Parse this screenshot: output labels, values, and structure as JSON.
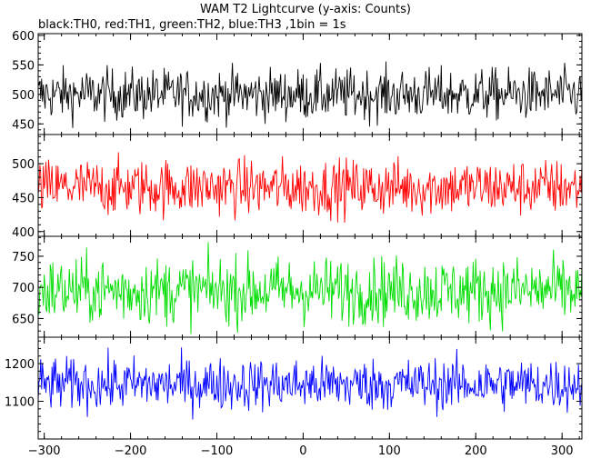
{
  "chart_data": {
    "type": "line",
    "title": "WAM T2 Lightcurve (y-axis: Counts)",
    "subtitle": "black:TH0, red:TH1, green:TH2, blue:TH3 ,1bin = 1s",
    "x_range": [
      -307,
      323
    ],
    "x_ticks": [
      -300,
      -200,
      -100,
      0,
      100,
      200,
      300
    ],
    "series_colors": [
      "#000000",
      "#ff0000",
      "#00dd00",
      "#0000ff"
    ],
    "panels": [
      {
        "series_index": 0,
        "mean": 500,
        "noise": 22,
        "ylim": [
          432,
          603
        ],
        "y_ticks": [
          450,
          500,
          550,
          600
        ]
      },
      {
        "series_index": 1,
        "mean": 465,
        "noise": 21,
        "ylim": [
          393,
          543
        ],
        "y_ticks": [
          400,
          450,
          500
        ]
      },
      {
        "series_index": 2,
        "mean": 695,
        "noise": 27,
        "ylim": [
          620,
          782
        ],
        "y_ticks": [
          650,
          700,
          750
        ]
      },
      {
        "series_index": 3,
        "mean": 1145,
        "noise": 35,
        "ylim": [
          1000,
          1270
        ],
        "y_ticks": [
          1100,
          1200
        ]
      }
    ]
  }
}
